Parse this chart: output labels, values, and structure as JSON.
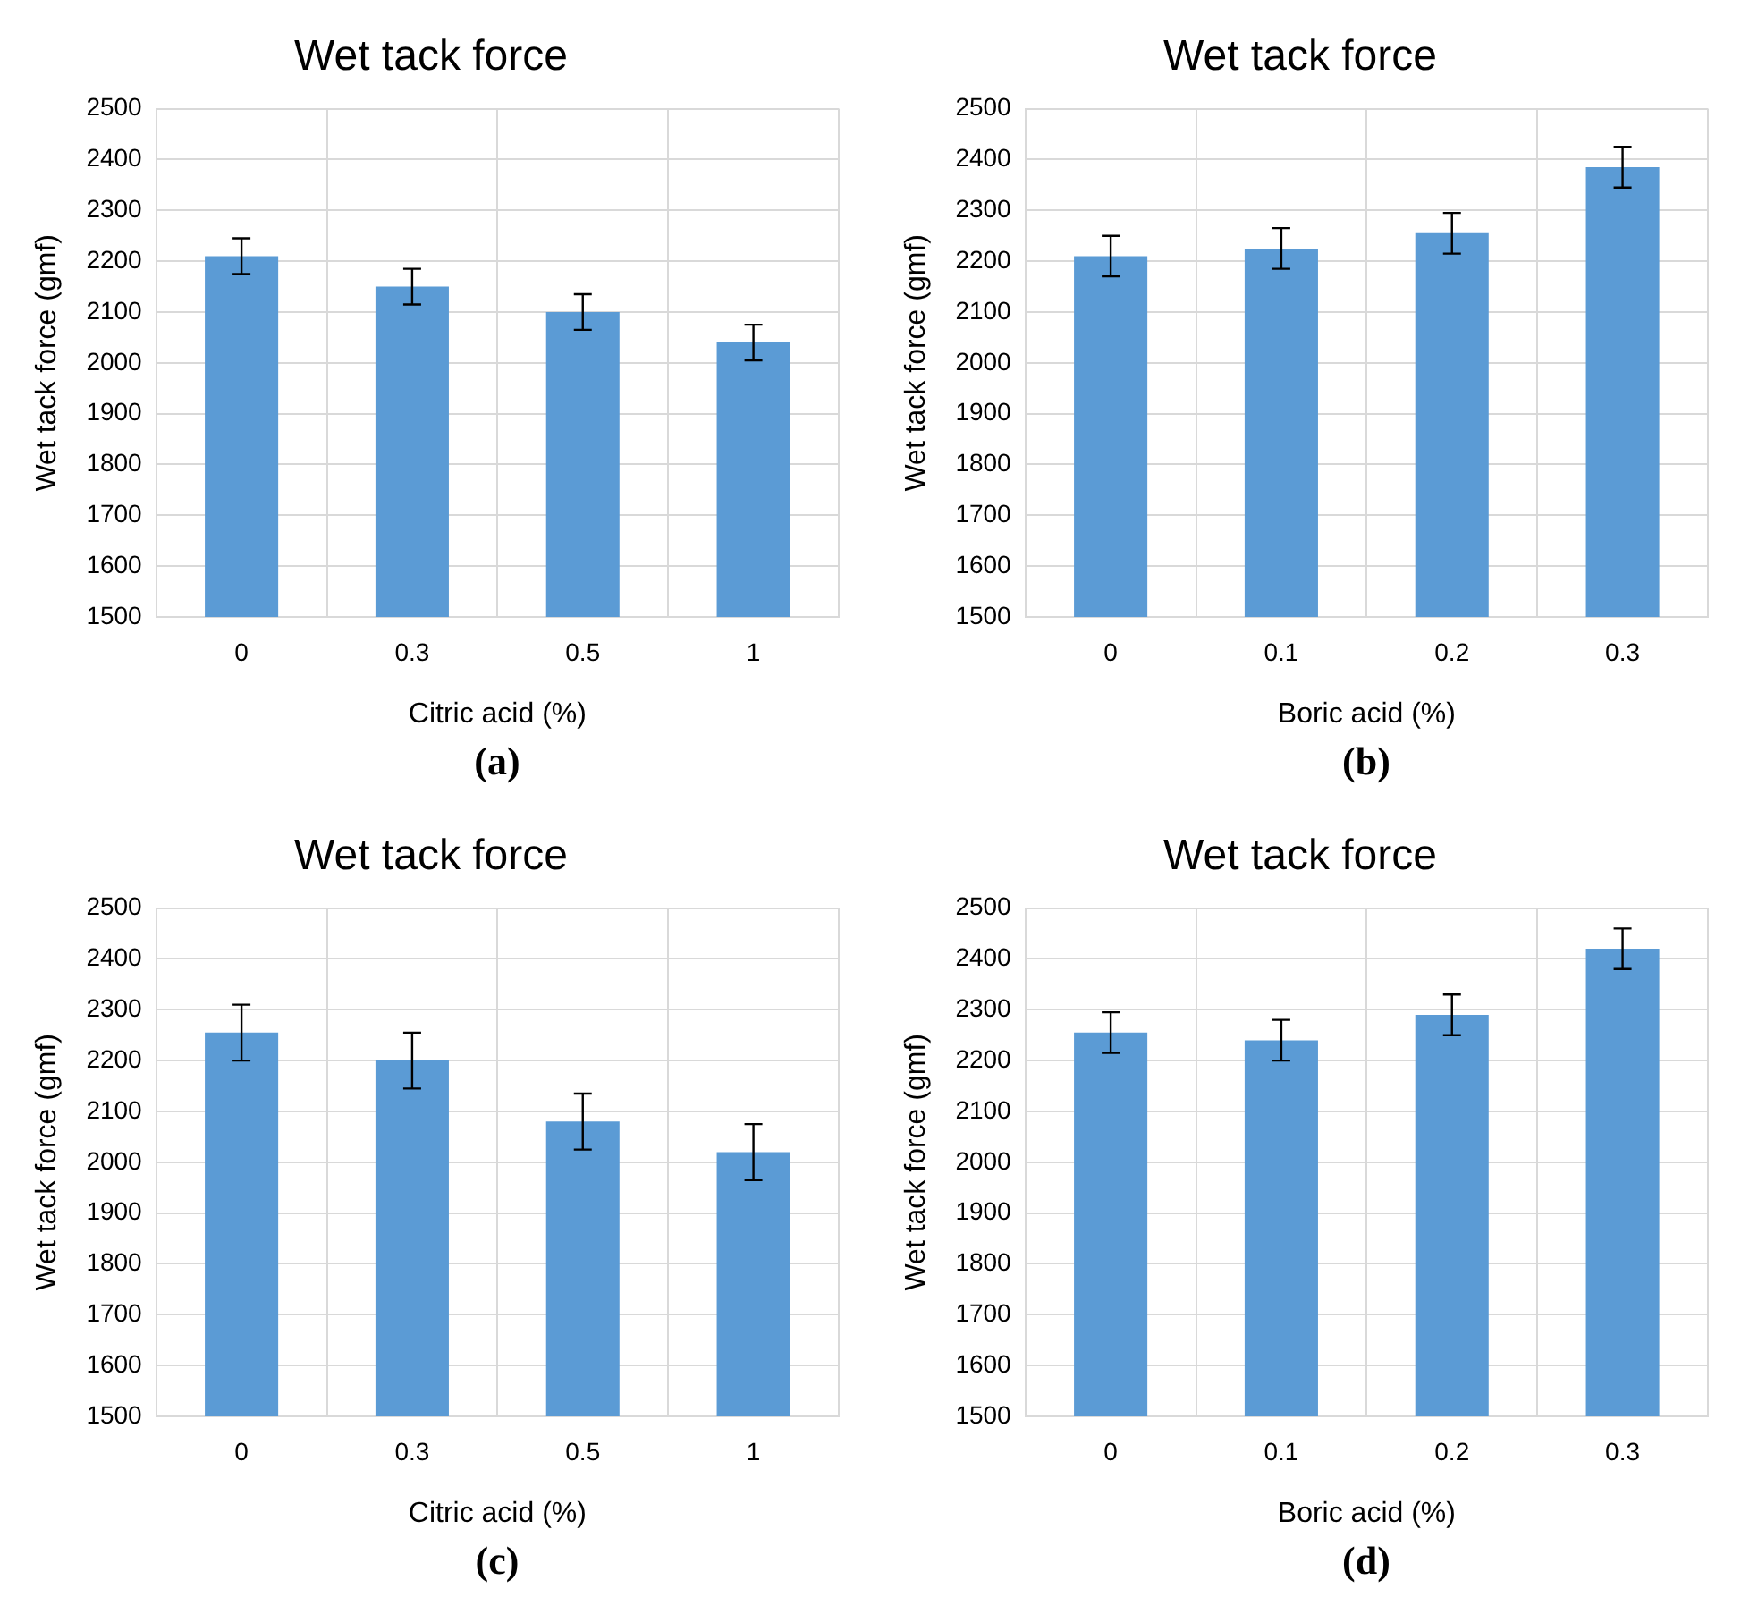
{
  "chart_data": [
    {
      "type": "bar",
      "title": "Wet tack force",
      "xlabel": "Citric acid (%)",
      "ylabel": "Wet tack force (gmf)",
      "categories": [
        "0",
        "0.3",
        "0.5",
        "1"
      ],
      "values": [
        2210,
        2150,
        2100,
        2040
      ],
      "errors": [
        35,
        35,
        35,
        35
      ],
      "color": "#5b9bd5",
      "ylim": [
        1500,
        2500
      ],
      "yticks": [
        1500,
        1600,
        1700,
        1800,
        1900,
        2000,
        2100,
        2200,
        2300,
        2400,
        2500
      ],
      "grid": true,
      "annotations": [
        "(a)"
      ]
    },
    {
      "type": "bar",
      "title": "Wet tack force",
      "xlabel": "Boric acid (%)",
      "ylabel": "Wet tack force (gmf)",
      "categories": [
        "0",
        "0.1",
        "0.2",
        "0.3"
      ],
      "values": [
        2210,
        2225,
        2255,
        2385
      ],
      "errors": [
        40,
        40,
        40,
        40
      ],
      "color": "#5b9bd5",
      "ylim": [
        1500,
        2500
      ],
      "yticks": [
        1500,
        1600,
        1700,
        1800,
        1900,
        2000,
        2100,
        2200,
        2300,
        2400,
        2500
      ],
      "grid": true,
      "annotations": [
        "(b)"
      ]
    },
    {
      "type": "bar",
      "title": "Wet tack force",
      "xlabel": "Citric acid (%)",
      "ylabel": "Wet tack force (gmf)",
      "categories": [
        "0",
        "0.3",
        "0.5",
        "1"
      ],
      "values": [
        2255,
        2200,
        2080,
        2020
      ],
      "errors": [
        55,
        55,
        55,
        55
      ],
      "color": "#5b9bd5",
      "ylim": [
        1500,
        2500
      ],
      "yticks": [
        1500,
        1600,
        1700,
        1800,
        1900,
        2000,
        2100,
        2200,
        2300,
        2400,
        2500
      ],
      "grid": true,
      "annotations": [
        "(c)"
      ]
    },
    {
      "type": "bar",
      "title": "Wet tack force",
      "xlabel": "Boric acid (%)",
      "ylabel": "Wet tack force (gmf)",
      "categories": [
        "0",
        "0.1",
        "0.2",
        "0.3"
      ],
      "values": [
        2255,
        2240,
        2290,
        2420
      ],
      "errors": [
        40,
        40,
        40,
        40
      ],
      "color": "#5b9bd5",
      "ylim": [
        1500,
        2500
      ],
      "yticks": [
        1500,
        1600,
        1700,
        1800,
        1900,
        2000,
        2100,
        2200,
        2300,
        2400,
        2500
      ],
      "grid": true,
      "annotations": [
        "(d)"
      ]
    }
  ]
}
